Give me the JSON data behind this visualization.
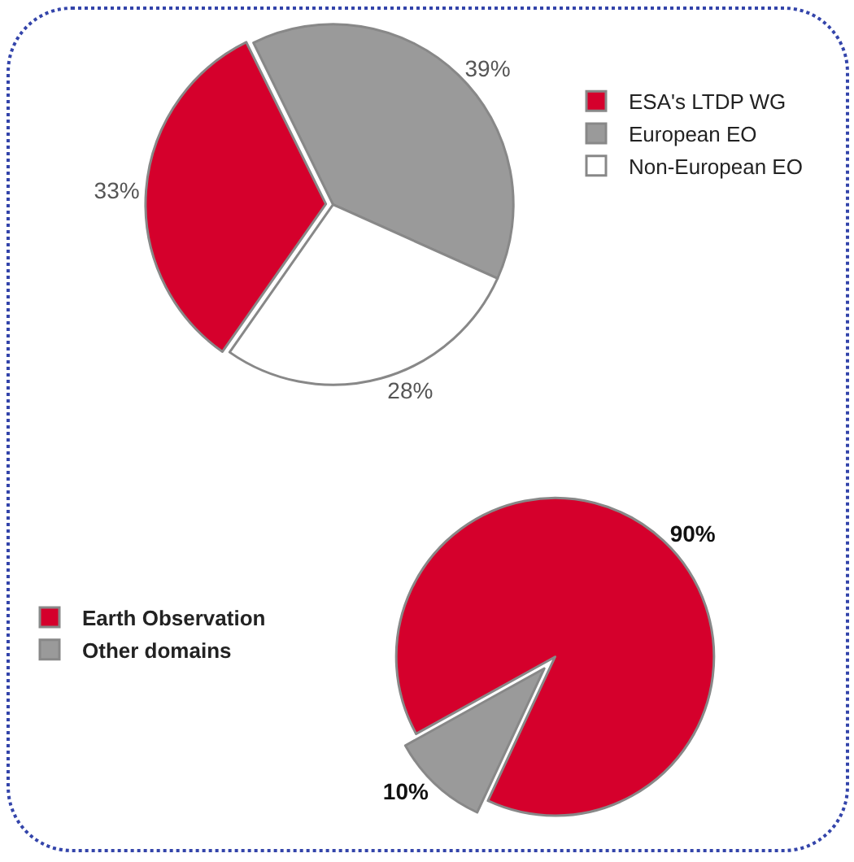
{
  "chart_data": [
    {
      "type": "pie",
      "categories": [
        "ESA's LTDP WG",
        "European EO",
        "Non-European EO"
      ],
      "values": [
        33,
        39,
        28
      ],
      "value_labels": [
        "33%",
        "39%",
        "28%"
      ],
      "colors": [
        "#d5002c",
        "#9a9a9a",
        "#ffffff"
      ],
      "legend": "right"
    },
    {
      "type": "pie",
      "categories": [
        "Earth Observation",
        "Other domains"
      ],
      "values": [
        90,
        10
      ],
      "value_labels": [
        "90%",
        "10%"
      ],
      "colors": [
        "#d5002c",
        "#9a9a9a"
      ],
      "legend": "left"
    }
  ]
}
